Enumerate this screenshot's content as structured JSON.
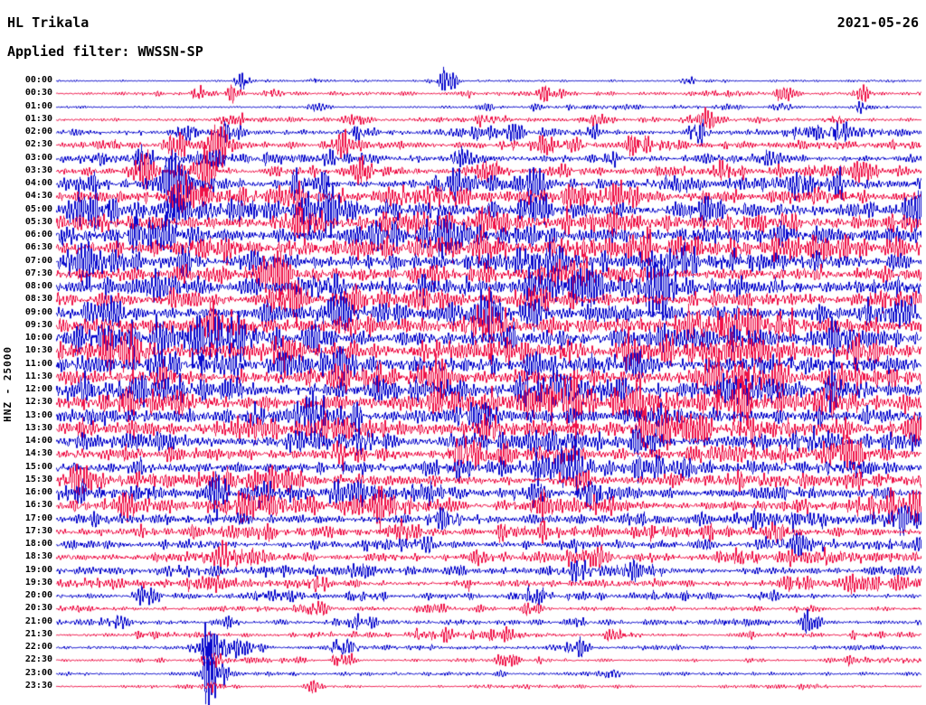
{
  "header": {
    "station": "HL Trikala",
    "date": "2021-05-26",
    "filter_label": "Applied filter: WWSSN-SP",
    "channel_label": "HNZ - 25000"
  },
  "chart_data": {
    "type": "line",
    "subtype": "helicorder-seismogram",
    "title": "HL Trikala",
    "date": "2021-05-26",
    "filter": "WWSSN-SP",
    "ylabel": "HNZ - 25000",
    "xlabel": "",
    "trace_interval_minutes": 30,
    "traces_per_day": 48,
    "grid": false,
    "legend": false,
    "trace_colors": [
      "#0909cd",
      "#ef1248"
    ],
    "amplitude_note": "amp = relative RMS noise level per 30-min trace (0-1); ev = bursts [x-fraction, amplitude, width-px]",
    "rows": [
      {
        "t": "00:00",
        "c": 0,
        "amp": 0.1,
        "ev": [
          [
            0.215,
            0.9,
            5
          ],
          [
            0.3,
            0.25,
            5
          ],
          [
            0.45,
            0.8,
            7
          ],
          [
            0.73,
            0.3,
            5
          ]
        ]
      },
      {
        "t": "00:30",
        "c": 1,
        "amp": 0.16,
        "ev": [
          [
            0.165,
            0.5,
            6
          ],
          [
            0.205,
            0.55,
            6
          ],
          [
            0.25,
            0.45,
            8
          ],
          [
            0.47,
            0.3,
            6
          ],
          [
            0.56,
            0.3,
            6
          ],
          [
            0.84,
            0.45,
            7
          ],
          [
            0.93,
            0.4,
            6
          ]
        ]
      },
      {
        "t": "01:00",
        "c": 0,
        "amp": 0.15,
        "ev": [
          [
            0.3,
            0.3,
            8
          ],
          [
            0.5,
            0.3,
            8
          ],
          [
            0.84,
            0.5,
            8
          ],
          [
            0.93,
            0.45,
            7
          ]
        ]
      },
      {
        "t": "01:30",
        "c": 1,
        "amp": 0.22,
        "ev": [
          [
            0.2,
            0.6,
            8
          ],
          [
            0.35,
            0.4,
            8
          ],
          [
            0.5,
            0.5,
            8
          ],
          [
            0.62,
            0.4,
            8
          ],
          [
            0.75,
            0.7,
            8
          ],
          [
            0.9,
            0.5,
            8
          ]
        ]
      },
      {
        "t": "02:00",
        "c": 0,
        "amp": 0.3,
        "ev": [
          [
            0.15,
            0.8,
            8
          ],
          [
            0.2,
            0.8,
            8
          ],
          [
            0.35,
            0.6,
            9
          ],
          [
            0.74,
            1.2,
            7
          ],
          [
            0.9,
            0.5,
            8
          ]
        ]
      },
      {
        "t": "02:30",
        "c": 1,
        "amp": 0.4,
        "ev": [
          [
            0.14,
            1.1,
            8
          ],
          [
            0.19,
            1.3,
            9
          ],
          [
            0.33,
            0.7,
            9
          ],
          [
            0.67,
            0.6,
            9
          ]
        ]
      },
      {
        "t": "03:00",
        "c": 0,
        "amp": 0.42,
        "ev": [
          [
            0.1,
            0.8,
            9
          ],
          [
            0.47,
            0.6,
            9
          ],
          [
            0.64,
            0.5,
            9
          ],
          [
            0.82,
            0.5,
            9
          ]
        ]
      },
      {
        "t": "03:30",
        "c": 1,
        "amp": 0.5,
        "ev": [
          [
            0.1,
            1.1,
            9
          ],
          [
            0.17,
            1.4,
            10
          ],
          [
            0.35,
            0.7,
            9
          ],
          [
            0.5,
            1.0,
            10
          ],
          [
            0.77,
            0.7,
            9
          ]
        ]
      },
      {
        "t": "04:00",
        "c": 0,
        "amp": 0.62,
        "ev": [
          [
            0.13,
            1.2,
            10
          ],
          [
            0.3,
            0.9,
            10
          ],
          [
            0.45,
            0.8,
            10
          ],
          [
            0.55,
            0.9,
            10
          ],
          [
            0.86,
            0.8,
            9
          ]
        ]
      },
      {
        "t": "04:30",
        "c": 1,
        "amp": 0.72,
        "ev": [
          [
            0.15,
            1.5,
            10
          ],
          [
            0.27,
            1.1,
            10
          ],
          [
            0.45,
            1.2,
            10
          ],
          [
            0.66,
            1.2,
            10
          ]
        ]
      },
      {
        "t": "05:00",
        "c": 0,
        "amp": 0.85,
        "ev": [
          [
            0.3,
            1.0,
            12
          ],
          [
            0.55,
            0.9,
            12
          ]
        ]
      },
      {
        "t": "05:30",
        "c": 1,
        "amp": 0.9,
        "ev": [
          [
            0.28,
            1.2,
            12
          ],
          [
            0.5,
            0.8,
            12
          ]
        ]
      },
      {
        "t": "06:00",
        "c": 0,
        "amp": 0.95,
        "ev": [
          [
            0.12,
            1.0,
            12
          ],
          [
            0.45,
            0.8,
            12
          ]
        ]
      },
      {
        "t": "06:30",
        "c": 1,
        "amp": 0.92,
        "ev": [
          [
            0.2,
            0.9,
            12
          ],
          [
            0.5,
            1.0,
            12
          ]
        ]
      },
      {
        "t": "07:00",
        "c": 0,
        "amp": 0.9,
        "ev": [
          [
            0.15,
            0.8,
            12
          ],
          [
            0.55,
            0.8,
            12
          ]
        ]
      },
      {
        "t": "07:30",
        "c": 1,
        "amp": 0.88,
        "ev": [
          [
            0.25,
            0.8,
            12
          ],
          [
            0.6,
            0.9,
            12
          ]
        ]
      },
      {
        "t": "08:00",
        "c": 0,
        "amp": 0.92,
        "ev": [
          [
            0.3,
            0.9,
            12
          ],
          [
            0.55,
            0.8,
            12
          ]
        ]
      },
      {
        "t": "08:30",
        "c": 1,
        "amp": 0.9,
        "ev": [
          [
            0.27,
            0.9,
            12
          ],
          [
            0.55,
            1.0,
            12
          ]
        ]
      },
      {
        "t": "09:00",
        "c": 0,
        "amp": 0.92,
        "ev": [
          [
            0.5,
            1.0,
            12
          ],
          [
            0.55,
            0.8,
            12
          ]
        ]
      },
      {
        "t": "09:30",
        "c": 1,
        "amp": 0.92,
        "ev": [
          [
            0.5,
            0.9,
            12
          ]
        ]
      },
      {
        "t": "10:00",
        "c": 0,
        "amp": 0.95,
        "ev": [
          [
            0.3,
            0.9,
            12
          ],
          [
            0.9,
            1.0,
            12
          ]
        ]
      },
      {
        "t": "10:30",
        "c": 1,
        "amp": 0.95,
        "ev": [
          [
            0.27,
            1.0,
            12
          ],
          [
            0.93,
            1.2,
            12
          ]
        ]
      },
      {
        "t": "11:00",
        "c": 0,
        "amp": 0.92,
        "ev": [
          [
            0.12,
            0.9,
            12
          ]
        ]
      },
      {
        "t": "11:30",
        "c": 1,
        "amp": 0.88,
        "ev": [
          [
            0.12,
            0.9,
            12
          ]
        ]
      },
      {
        "t": "12:00",
        "c": 0,
        "amp": 0.88,
        "ev": [
          [
            0.58,
            1.0,
            12
          ]
        ]
      },
      {
        "t": "12:30",
        "c": 1,
        "amp": 0.86,
        "ev": [
          [
            0.6,
            0.9,
            12
          ],
          [
            0.78,
            0.9,
            12
          ]
        ]
      },
      {
        "t": "13:00",
        "c": 0,
        "amp": 0.84,
        "ev": [
          [
            0.3,
            0.8,
            12
          ],
          [
            0.5,
            0.9,
            12
          ]
        ]
      },
      {
        "t": "13:30",
        "c": 1,
        "amp": 0.82,
        "ev": [
          [
            0.5,
            0.9,
            12
          ],
          [
            0.72,
            0.9,
            12
          ],
          [
            0.8,
            0.9,
            12
          ]
        ]
      },
      {
        "t": "14:00",
        "c": 0,
        "amp": 0.78,
        "ev": [
          [
            0.35,
            0.9,
            12
          ],
          [
            0.68,
            0.9,
            12
          ]
        ]
      },
      {
        "t": "14:30",
        "c": 1,
        "amp": 0.72,
        "ev": [
          [
            0.33,
            1.0,
            12
          ],
          [
            0.47,
            0.8,
            12
          ],
          [
            0.92,
            1.0,
            12
          ]
        ]
      },
      {
        "t": "15:00",
        "c": 0,
        "amp": 0.66,
        "ev": [
          [
            0.6,
            0.7,
            12
          ]
        ]
      },
      {
        "t": "15:30",
        "c": 1,
        "amp": 0.62,
        "ev": [
          [
            0.25,
            0.6,
            12
          ],
          [
            0.6,
            0.6,
            12
          ]
        ]
      },
      {
        "t": "16:00",
        "c": 0,
        "amp": 0.6,
        "ev": [
          [
            0.1,
            0.7,
            12
          ],
          [
            0.62,
            0.8,
            12
          ]
        ]
      },
      {
        "t": "16:30",
        "c": 1,
        "amp": 0.58,
        "ev": [
          [
            0.25,
            0.6,
            12
          ],
          [
            0.62,
            0.7,
            12
          ]
        ]
      },
      {
        "t": "17:00",
        "c": 0,
        "amp": 0.58,
        "ev": [
          [
            0.45,
            0.6,
            12
          ],
          [
            0.85,
            0.7,
            12
          ],
          [
            0.98,
            0.8,
            10
          ]
        ]
      },
      {
        "t": "17:30",
        "c": 1,
        "amp": 0.54,
        "ev": [
          [
            0.4,
            0.6,
            12
          ],
          [
            0.83,
            0.7,
            12
          ]
        ]
      },
      {
        "t": "18:00",
        "c": 0,
        "amp": 0.5,
        "ev": [
          [
            0.42,
            0.8,
            12
          ]
        ]
      },
      {
        "t": "18:30",
        "c": 1,
        "amp": 0.48,
        "ev": [
          [
            0.2,
            0.5,
            12
          ],
          [
            0.62,
            0.6,
            12
          ]
        ]
      },
      {
        "t": "19:00",
        "c": 0,
        "amp": 0.44,
        "ev": [
          [
            0.35,
            0.5,
            12
          ],
          [
            0.65,
            0.6,
            12
          ]
        ]
      },
      {
        "t": "19:30",
        "c": 1,
        "amp": 0.42,
        "ev": [
          [
            0.3,
            0.5,
            12
          ],
          [
            0.85,
            0.5,
            12
          ]
        ]
      },
      {
        "t": "20:00",
        "c": 0,
        "amp": 0.26,
        "ev": [
          [
            0.1,
            0.5,
            10
          ],
          [
            0.35,
            0.5,
            10
          ],
          [
            0.55,
            0.5,
            10
          ],
          [
            0.82,
            0.4,
            10
          ]
        ]
      },
      {
        "t": "20:30",
        "c": 1,
        "amp": 0.26,
        "ev": [
          [
            0.3,
            0.4,
            10
          ],
          [
            0.55,
            0.4,
            10
          ]
        ]
      },
      {
        "t": "21:00",
        "c": 0,
        "amp": 0.26,
        "ev": [
          [
            0.07,
            0.5,
            9
          ],
          [
            0.35,
            0.4,
            9
          ],
          [
            0.6,
            0.4,
            9
          ],
          [
            0.87,
            0.6,
            9
          ]
        ]
      },
      {
        "t": "21:30",
        "c": 1,
        "amp": 0.22,
        "ev": [
          [
            0.1,
            0.4,
            9
          ],
          [
            0.42,
            0.4,
            9
          ],
          [
            0.65,
            0.4,
            9
          ]
        ]
      },
      {
        "t": "22:00",
        "c": 0,
        "amp": 0.22,
        "ev": [
          [
            0.177,
            3.2,
            4
          ],
          [
            0.185,
            1.5,
            10
          ],
          [
            0.33,
            0.8,
            9
          ],
          [
            0.6,
            0.5,
            9
          ]
        ]
      },
      {
        "t": "22:30",
        "c": 1,
        "amp": 0.18,
        "ev": [
          [
            0.18,
            0.6,
            8
          ],
          [
            0.33,
            0.9,
            8
          ],
          [
            0.52,
            0.3,
            8
          ]
        ]
      },
      {
        "t": "23:00",
        "c": 0,
        "amp": 0.16,
        "ev": [
          [
            0.177,
            2.6,
            4
          ],
          [
            0.185,
            1.0,
            9
          ],
          [
            0.64,
            0.5,
            8
          ]
        ]
      },
      {
        "t": "23:30",
        "c": 1,
        "amp": 0.13,
        "ev": [
          [
            0.18,
            0.5,
            7
          ],
          [
            0.3,
            0.3,
            7
          ]
        ]
      }
    ]
  }
}
